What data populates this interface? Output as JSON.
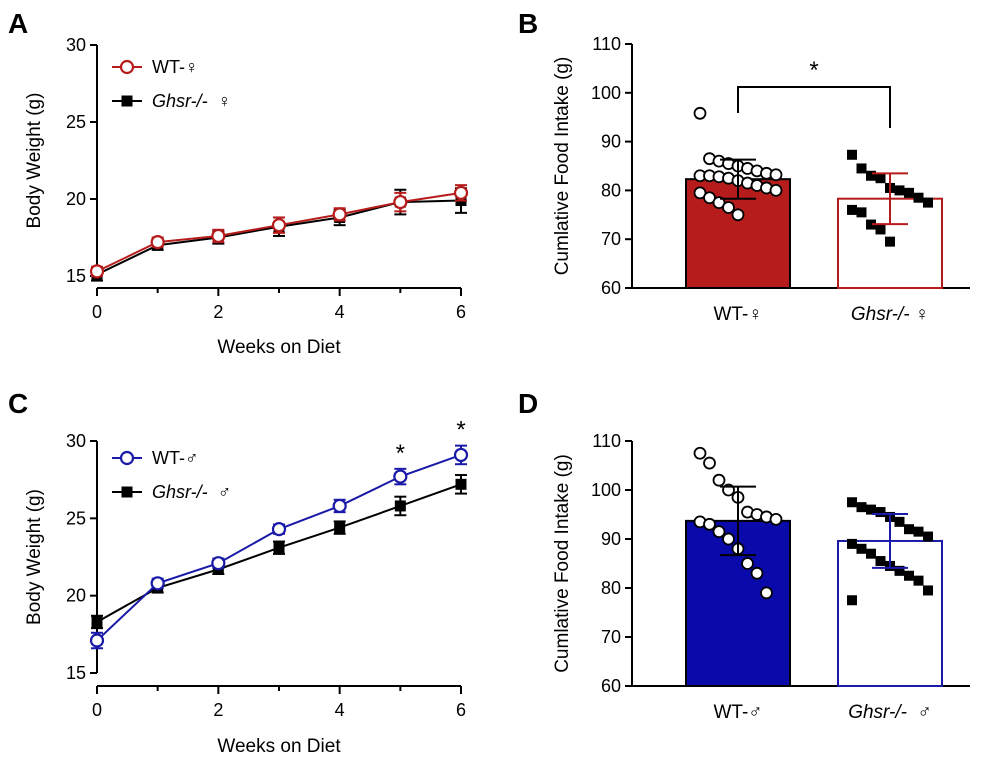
{
  "chart_data": [
    {
      "panel": "A",
      "type": "line",
      "xlabel": "Weeks on Diet",
      "ylabel": "Body Weight (g)",
      "xlim": [
        0,
        6
      ],
      "ylim": [
        15,
        30
      ],
      "xticks": [
        0,
        2,
        4,
        6
      ],
      "yticks": [
        15,
        20,
        25,
        30
      ],
      "xtick_labels": [
        "0",
        "2",
        "4",
        "6"
      ],
      "ytick_labels": [
        "15",
        "20",
        "25",
        "30"
      ],
      "series": [
        {
          "name": "WT-♀",
          "name_main": "WT-♀",
          "name_italic": "",
          "color": "#b71c1c",
          "marker": "open-circle",
          "x": [
            0,
            1,
            2,
            3,
            4,
            5,
            6
          ],
          "y": [
            15.3,
            17.2,
            17.6,
            18.3,
            19.0,
            19.8,
            20.4
          ],
          "err": [
            0.3,
            0.3,
            0.4,
            0.5,
            0.4,
            0.6,
            0.5
          ]
        },
        {
          "name": "Ghsr-/- ♀",
          "name_main": "♀",
          "name_italic": "Ghsr-/- ",
          "color": "#000000",
          "marker": "filled-square",
          "x": [
            0,
            1,
            2,
            3,
            4,
            5,
            6
          ],
          "y": [
            15.1,
            17.0,
            17.5,
            18.2,
            18.8,
            19.8,
            19.9
          ],
          "err": [
            0.4,
            0.3,
            0.4,
            0.6,
            0.5,
            0.8,
            0.8
          ]
        }
      ],
      "annotations": []
    },
    {
      "panel": "B",
      "type": "bar",
      "ylabel": "Cumlative Food Intake (g)",
      "ylim": [
        60,
        110
      ],
      "yticks": [
        60,
        70,
        80,
        90,
        100,
        110
      ],
      "ytick_labels": [
        "60",
        "70",
        "80",
        "90",
        "100",
        "110"
      ],
      "categories": [
        {
          "main": "WT-♀",
          "italic": ""
        },
        {
          "main": "♀",
          "italic": "Ghsr-/-"
        }
      ],
      "bars": [
        {
          "mean": 82.3,
          "sd": 4.0,
          "fill": "#b71c1c",
          "edge": "#000000",
          "err_color": "#000000",
          "marker": "open-circle",
          "points": [
            95.8,
            86.5,
            86.0,
            85.5,
            85.0,
            84.5,
            84.0,
            83.5,
            83.2,
            83.0,
            83.0,
            82.8,
            82.5,
            82.0,
            81.5,
            81.0,
            80.5,
            80.0,
            79.5,
            78.5,
            77.5,
            76.5,
            75.0
          ]
        },
        {
          "mean": 78.3,
          "sd": 5.2,
          "fill": "#ffffff",
          "edge": "#b71c1c",
          "err_color": "#b71c1c",
          "marker": "filled-square",
          "points": [
            87.3,
            84.5,
            83.0,
            82.5,
            80.5,
            80.0,
            79.5,
            78.5,
            77.5,
            76.0,
            75.5,
            73.0,
            72.0,
            69.5
          ]
        }
      ],
      "significance": {
        "label": "*",
        "between": [
          0,
          1
        ]
      }
    },
    {
      "panel": "C",
      "type": "line",
      "xlabel": "Weeks on Diet",
      "ylabel": "Body Weight (g)",
      "xlim": [
        0,
        6
      ],
      "ylim": [
        15,
        30
      ],
      "xticks": [
        0,
        2,
        4,
        6
      ],
      "yticks": [
        15,
        20,
        25,
        30
      ],
      "xtick_labels": [
        "0",
        "2",
        "4",
        "6"
      ],
      "ytick_labels": [
        "15",
        "20",
        "25",
        "30"
      ],
      "series": [
        {
          "name": "WT-♂",
          "name_main": "WT-♂",
          "name_italic": "",
          "color": "#1a1aa8",
          "marker": "open-circle",
          "x": [
            0,
            1,
            2,
            3,
            4,
            5,
            6
          ],
          "y": [
            17.1,
            20.8,
            22.1,
            24.3,
            25.8,
            27.7,
            29.1
          ],
          "err": [
            0.5,
            0.3,
            0.3,
            0.3,
            0.4,
            0.5,
            0.6
          ]
        },
        {
          "name": "Ghsr-/- ♂",
          "name_main": "♂",
          "name_italic": "Ghsr-/- ",
          "color": "#000000",
          "marker": "filled-square",
          "x": [
            0,
            1,
            2,
            3,
            4,
            5,
            6
          ],
          "y": [
            18.3,
            20.5,
            21.7,
            23.1,
            24.4,
            25.8,
            27.2
          ],
          "err": [
            0.4,
            0.3,
            0.3,
            0.4,
            0.4,
            0.6,
            0.6
          ]
        }
      ],
      "annotations": [
        {
          "x": 5,
          "label": "*"
        },
        {
          "x": 6,
          "label": "*"
        }
      ]
    },
    {
      "panel": "D",
      "type": "bar",
      "ylabel": "Cumlative Food Intake (g)",
      "ylim": [
        60,
        110
      ],
      "yticks": [
        60,
        70,
        80,
        90,
        100,
        110
      ],
      "ytick_labels": [
        "60",
        "70",
        "80",
        "90",
        "100",
        "110"
      ],
      "categories": [
        {
          "main": "WT-♂",
          "italic": ""
        },
        {
          "main": "♂",
          "italic": "Ghsr-/- "
        }
      ],
      "bars": [
        {
          "mean": 93.7,
          "sd": 7.0,
          "fill": "#0a0aaa",
          "edge": "#000000",
          "err_color": "#000000",
          "marker": "open-circle",
          "points": [
            107.5,
            105.5,
            102.0,
            100.0,
            98.5,
            95.5,
            95.0,
            94.5,
            94.0,
            93.5,
            93.0,
            91.5,
            90.0,
            88.0,
            85.0,
            83.0,
            79.0
          ]
        },
        {
          "mean": 89.6,
          "sd": 5.5,
          "fill": "#ffffff",
          "edge": "#1a1aa8",
          "err_color": "#1a1aa8",
          "marker": "filled-square",
          "points": [
            97.5,
            96.5,
            96.0,
            95.5,
            94.5,
            93.5,
            92.0,
            91.5,
            90.5,
            89.0,
            88.0,
            87.0,
            85.5,
            84.5,
            83.5,
            82.5,
            81.5,
            79.5,
            77.5
          ]
        }
      ],
      "significance": null
    }
  ]
}
